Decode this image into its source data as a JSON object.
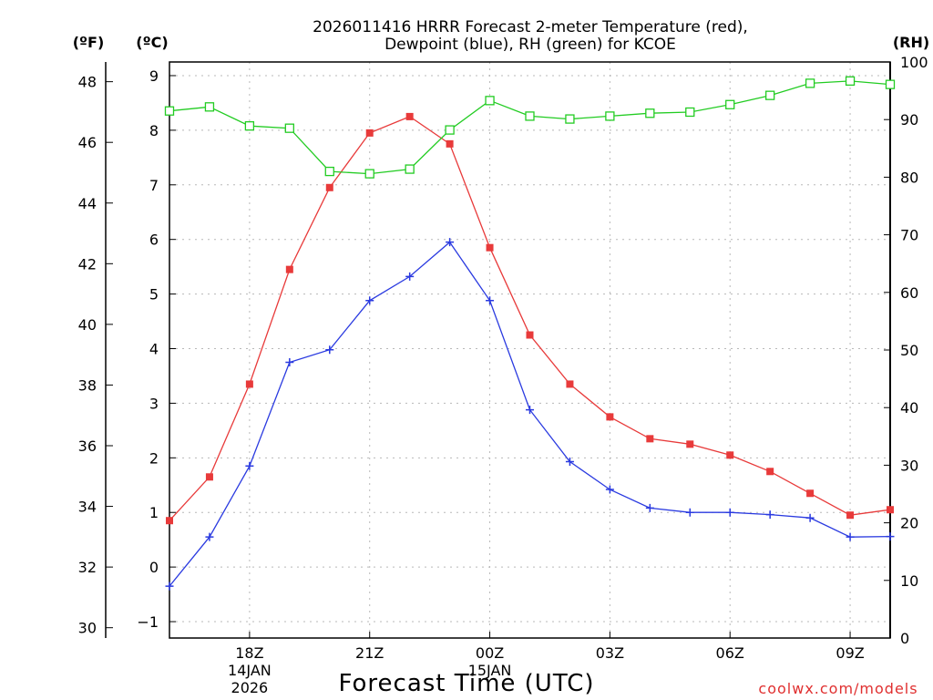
{
  "chart_data": {
    "type": "line",
    "title": [
      "2026011416 HRRR Forecast 2-meter Temperature (red),",
      "Dewpoint (blue), RH (green) for KCOE"
    ],
    "xlabel": "Forecast Time (UTC)",
    "credit": "coolwx.com/models",
    "units": {
      "fahrenheit": "(ºF)",
      "celsius": "(ºC)",
      "rh": "(RH)"
    },
    "x": [
      16,
      17,
      18,
      19,
      20,
      21,
      22,
      23,
      24,
      25,
      26,
      27,
      28,
      29,
      30,
      31,
      32,
      33,
      34
    ],
    "x_range": [
      16,
      34
    ],
    "celsius_range": [
      -1.3,
      9.25
    ],
    "rh_range": [
      0,
      100
    ],
    "celsius_ticks": [
      -1,
      0,
      1,
      2,
      3,
      4,
      5,
      6,
      7,
      8,
      9
    ],
    "fahrenheit_ticks": [
      30,
      32,
      34,
      36,
      38,
      40,
      42,
      44,
      46,
      48
    ],
    "rh_ticks": [
      0,
      10,
      20,
      30,
      40,
      50,
      60,
      70,
      80,
      90,
      100
    ],
    "x_ticks": [
      {
        "x": 18,
        "label": "18Z",
        "date": "14JAN",
        "year": "2026"
      },
      {
        "x": 21,
        "label": "21Z"
      },
      {
        "x": 24,
        "label": "00Z",
        "date": "15JAN"
      },
      {
        "x": 27,
        "label": "03Z"
      },
      {
        "x": 30,
        "label": "06Z"
      },
      {
        "x": 33,
        "label": "09Z"
      }
    ],
    "grid": true,
    "series": [
      {
        "name": "Temperature",
        "axis": "celsius",
        "color": "#e83a3a",
        "marker": "filled-square",
        "values": [
          0.85,
          1.65,
          3.35,
          5.45,
          6.95,
          7.95,
          8.25,
          7.75,
          5.85,
          4.25,
          3.35,
          2.75,
          2.35,
          2.25,
          2.05,
          1.75,
          1.35,
          0.95,
          1.05
        ]
      },
      {
        "name": "Dewpoint",
        "axis": "celsius",
        "color": "#2a3ae0",
        "marker": "plus",
        "values": [
          -0.35,
          0.55,
          1.85,
          3.75,
          3.98,
          4.88,
          5.32,
          5.95,
          4.88,
          2.88,
          1.93,
          1.42,
          1.08,
          1.0,
          1.0,
          0.96,
          0.9,
          0.55,
          0.56
        ]
      },
      {
        "name": "RH",
        "axis": "rh",
        "color": "#22cc22",
        "marker": "open-square",
        "values": [
          91.5,
          92.2,
          88.9,
          88.5,
          81.0,
          80.6,
          81.4,
          88.2,
          93.3,
          90.6,
          90.1,
          90.6,
          91.1,
          91.3,
          92.6,
          94.2,
          96.3,
          96.7,
          96.1
        ]
      }
    ]
  }
}
